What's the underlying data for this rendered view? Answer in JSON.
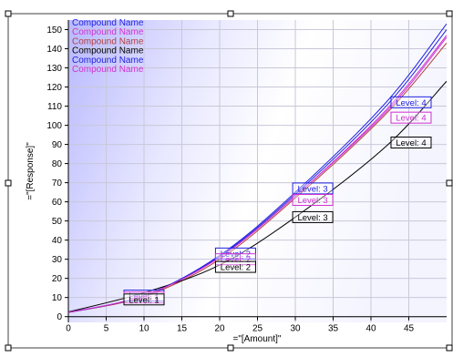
{
  "chart_data": {
    "type": "line",
    "xlabel": "=\"[Amount]\"",
    "ylabel": "=\"[Response]\"",
    "xlim": [
      0,
      50
    ],
    "ylim": [
      -3,
      155
    ],
    "x_ticks": [
      0,
      5,
      10,
      15,
      20,
      25,
      30,
      35,
      40,
      45
    ],
    "y_ticks": [
      0,
      10,
      20,
      30,
      40,
      50,
      60,
      70,
      80,
      90,
      100,
      110,
      120,
      130,
      140,
      150
    ],
    "grid": true,
    "legend_position": "top-left",
    "legend": [
      {
        "label": "Compound Name",
        "color": "#2020e0"
      },
      {
        "label": "Compound Name",
        "color": "#d030d0"
      },
      {
        "label": "Compound Name",
        "color": "#b04040"
      },
      {
        "label": "Compound Name",
        "color": "#000000"
      },
      {
        "label": "Compound Name",
        "color": "#2020e0"
      },
      {
        "label": "Compound Name",
        "color": "#d030d0"
      }
    ],
    "series": [
      {
        "color": "#2020e0",
        "x": [
          -1,
          10,
          20,
          30,
          42,
          50
        ],
        "y": [
          1.5,
          11,
          32,
          65,
          112,
          153
        ]
      },
      {
        "color": "#d030d0",
        "x": [
          -1,
          10,
          20,
          30,
          42,
          50
        ],
        "y": [
          1.5,
          11,
          31,
          63,
          107,
          146
        ]
      },
      {
        "color": "#b04040",
        "x": [
          -1,
          10,
          20,
          30,
          42,
          50
        ],
        "y": [
          1.5,
          10.5,
          30,
          62,
          106,
          143
        ]
      },
      {
        "color": "#000000",
        "x": [
          -1,
          10,
          20,
          30,
          42,
          50
        ],
        "y": [
          1.5,
          12.5,
          27,
          52,
          89,
          123
        ]
      },
      {
        "color": "#2020e0",
        "x": [
          -1,
          10,
          20,
          30,
          42,
          50
        ],
        "y": [
          1.5,
          11,
          31.5,
          64,
          110,
          150
        ]
      },
      {
        "color": "#d030d0",
        "x": [
          -1,
          10,
          20,
          30,
          42,
          50
        ],
        "y": [
          1.5,
          11,
          31,
          63,
          108,
          147
        ]
      }
    ],
    "level_labels": [
      {
        "text": "Level: 4",
        "x": 45.3,
        "y": 112,
        "color": "#2020e0"
      },
      {
        "text": "Level: 4",
        "x": 45.3,
        "y": 104,
        "color": "#d030d0"
      },
      {
        "text": "Level: 4",
        "x": 45.3,
        "y": 91,
        "color": "#000000"
      },
      {
        "text": "Level: 3",
        "x": 32.3,
        "y": 67,
        "color": "#2020e0"
      },
      {
        "text": "Level: 3",
        "x": 32.3,
        "y": 61,
        "color": "#d030d0"
      },
      {
        "text": "Level: 3",
        "x": 32.3,
        "y": 52,
        "color": "#000000"
      },
      {
        "text": "Level: 2",
        "x": 22.1,
        "y": 33,
        "color": "#2020e0"
      },
      {
        "text": "Level: 2",
        "x": 22.1,
        "y": 30,
        "color": "#d030d0"
      },
      {
        "text": "Level: 2",
        "x": 22.1,
        "y": 26,
        "color": "#000000"
      },
      {
        "text": "Level: 1",
        "x": 10.0,
        "y": 11,
        "color": "#2020e0"
      },
      {
        "text": "Level: 1",
        "x": 10.0,
        "y": 10,
        "color": "#d030d0"
      },
      {
        "text": "Level: 1",
        "x": 10.0,
        "y": 9,
        "color": "#000000"
      }
    ]
  }
}
